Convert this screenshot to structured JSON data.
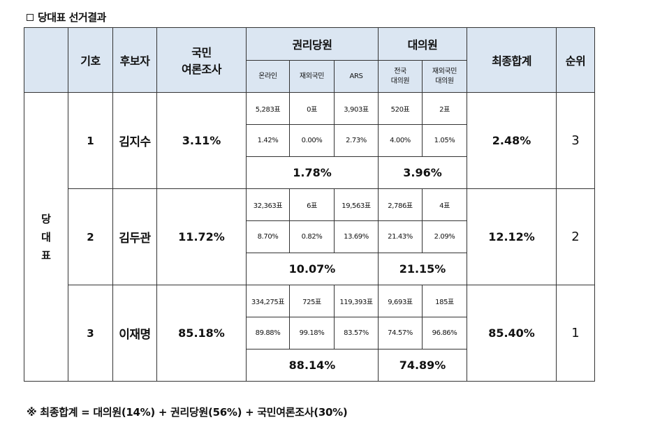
{
  "title": "당대표 선거결과",
  "header": {
    "number": "기호",
    "candidate": "후보자",
    "poll_line1": "국민",
    "poll_line2": "여론조사",
    "party_members": "권리당원",
    "delegates": "대의원",
    "final_total": "최종합계",
    "rank": "순위",
    "online": "온라인",
    "overseas": "재외국민",
    "ars": "ARS",
    "national_delegate_l1": "전국",
    "national_delegate_l2": "대의원",
    "overseas_delegate_l1": "재외국민",
    "overseas_delegate_l2": "대의원"
  },
  "group_label": [
    "당",
    "대",
    "표"
  ],
  "candidates": [
    {
      "number": "1",
      "name": "김지수",
      "poll": "3.11%",
      "votes": [
        "5,283표",
        "0표",
        "3,903표",
        "520표",
        "2표"
      ],
      "rates": [
        "1.42%",
        "0.00%",
        "2.73%",
        "4.00%",
        "1.05%"
      ],
      "members_sub": "1.78%",
      "delegates_sub": "3.96%",
      "final": "2.48%",
      "rank": "3"
    },
    {
      "number": "2",
      "name": "김두관",
      "poll": "11.72%",
      "votes": [
        "32,363표",
        "6표",
        "19,563표",
        "2,786표",
        "4표"
      ],
      "rates": [
        "8.70%",
        "0.82%",
        "13.69%",
        "21.43%",
        "2.09%"
      ],
      "members_sub": "10.07%",
      "delegates_sub": "21.15%",
      "final": "12.12%",
      "rank": "2"
    },
    {
      "number": "3",
      "name": "이재명",
      "poll": "85.18%",
      "votes": [
        "334,275표",
        "725표",
        "119,393표",
        "9,693표",
        "185표"
      ],
      "rates": [
        "89.88%",
        "99.18%",
        "83.57%",
        "74.57%",
        "96.86%"
      ],
      "members_sub": "88.14%",
      "delegates_sub": "74.89%",
      "final": "85.40%",
      "rank": "1"
    }
  ],
  "footnote": "※ 최종합계 = 대의원(14%) + 권리당원(56%) + 국민여론조사(30%)",
  "colors": {
    "header_bg": "#dbe6f2",
    "border": "#333333"
  }
}
